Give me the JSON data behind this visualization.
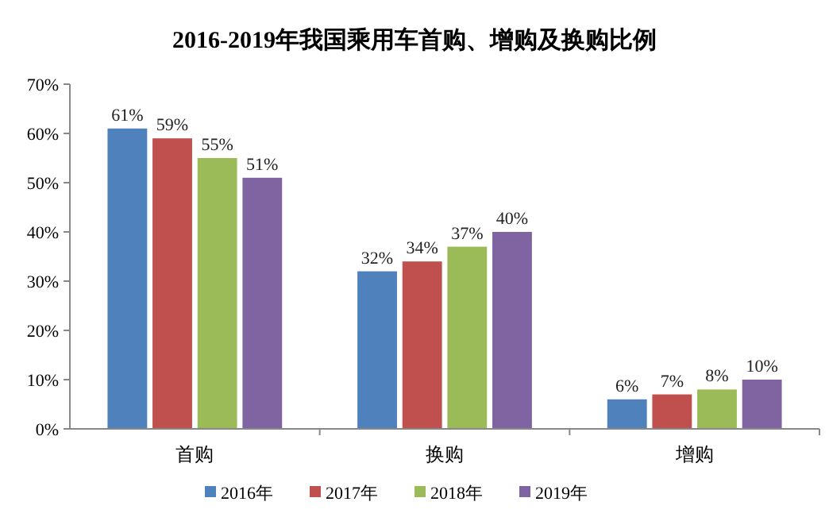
{
  "chart_data": {
    "type": "bar",
    "title": "2016-2019年我国乘用车首购、增购及换购比例",
    "categories": [
      "首购",
      "换购",
      "增购"
    ],
    "series": [
      {
        "name": "2016年",
        "color": "#4f81bd",
        "values": [
          61,
          32,
          6
        ],
        "value_labels": [
          "61%",
          "32%",
          "6%"
        ]
      },
      {
        "name": "2017年",
        "color": "#c0504d",
        "values": [
          59,
          34,
          7
        ],
        "value_labels": [
          "59%",
          "34%",
          "7%"
        ]
      },
      {
        "name": "2018年",
        "color": "#9bbb59",
        "values": [
          55,
          37,
          8
        ],
        "value_labels": [
          "55%",
          "37%",
          "8%"
        ]
      },
      {
        "name": "2019年",
        "color": "#8064a2",
        "values": [
          51,
          40,
          10
        ],
        "value_labels": [
          "51%",
          "40%",
          "10%"
        ]
      }
    ],
    "ylim": [
      0,
      70
    ],
    "yticks": [
      {
        "value": 0,
        "label": "0%"
      },
      {
        "value": 10,
        "label": "10%"
      },
      {
        "value": 20,
        "label": "20%"
      },
      {
        "value": 30,
        "label": "30%"
      },
      {
        "value": 40,
        "label": "40%"
      },
      {
        "value": 50,
        "label": "50%"
      },
      {
        "value": 60,
        "label": "60%"
      },
      {
        "value": 70,
        "label": "70%"
      }
    ],
    "legend": "bottom"
  }
}
